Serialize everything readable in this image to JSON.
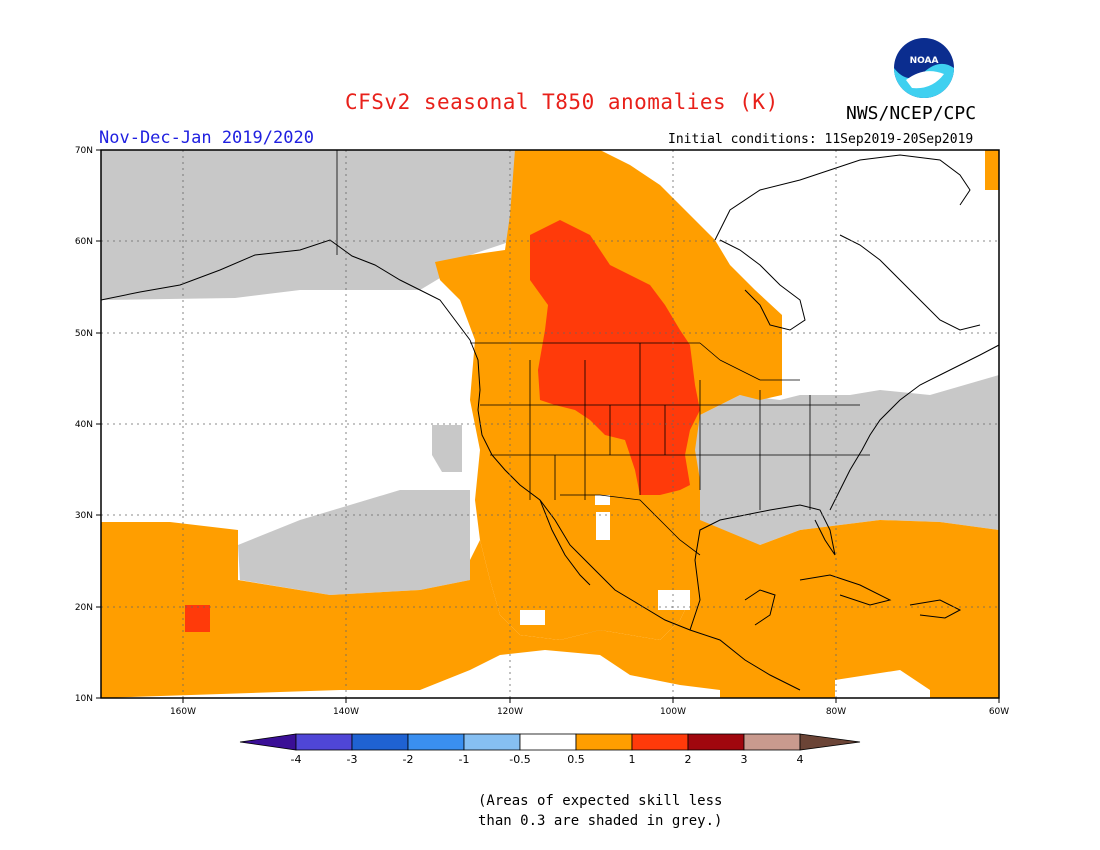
{
  "header": {
    "title": "CFSv2 seasonal T850 anomalies (K)",
    "agency": "NWS/NCEP/CPC",
    "logo_text": "NOAA",
    "period": "Nov-Dec-Jan 2019/2020",
    "initial_conditions": "Initial conditions: 11Sep2019-20Sep2019"
  },
  "map": {
    "lon_labels": [
      "160W",
      "140W",
      "120W",
      "100W",
      "80W",
      "60W"
    ],
    "lat_labels": [
      "70N",
      "60N",
      "50N",
      "40N",
      "30N",
      "20N",
      "10N"
    ],
    "lon_range": [
      -170,
      -60
    ],
    "lat_range": [
      10,
      70
    ],
    "grid": "dotted"
  },
  "colorbar": {
    "labels": [
      "-4",
      "-3",
      "-2",
      "-1",
      "-0.5",
      "0.5",
      "1",
      "2",
      "3",
      "4"
    ],
    "colors": [
      "#3a0f96",
      "#4f46d6",
      "#1f62d2",
      "#3a8ff0",
      "#86bff2",
      "#ffffff",
      "#ff9e00",
      "#ff3a0a",
      "#a0070e",
      "#c99a8e",
      "#6b4436"
    ]
  },
  "legend_colors": {
    "low_skill": "#c8c8c8",
    "anom_0_5_to_1": "#ff9e00",
    "anom_1_to_2": "#ff3a0a"
  },
  "footnote": {
    "line1": "(Areas of expected skill less",
    "line2": "than 0.3 are shaded in grey.)"
  }
}
